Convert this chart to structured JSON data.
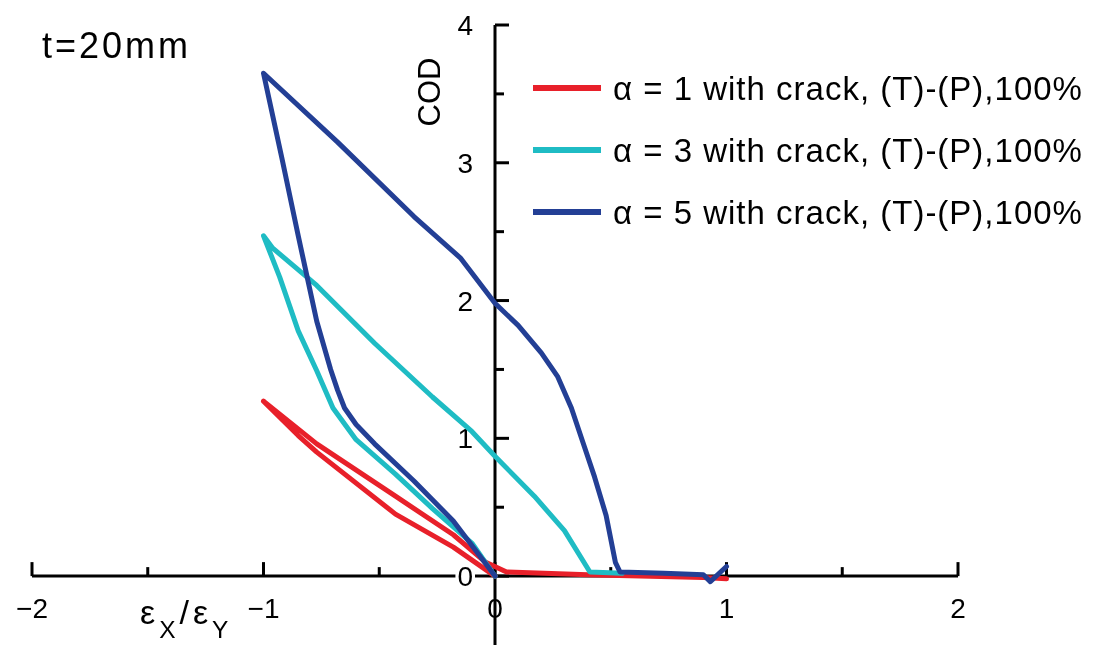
{
  "chart_data": {
    "type": "line",
    "xlabel": "ε$_{X}$/ε$_{Y}$",
    "ylabel": "COD",
    "annotations": [
      "t=20mm"
    ],
    "xlim": [
      -2,
      2
    ],
    "xticks": [
      {
        "value": -2,
        "label": "−2"
      },
      {
        "value": -1.5,
        "label": null
      },
      {
        "value": -1,
        "label": "−1"
      },
      {
        "value": -0.5,
        "label": null
      },
      0,
      {
        "value": 0.5,
        "label": null
      },
      1,
      {
        "value": 1.5,
        "label": null
      },
      2
    ],
    "ylim": [
      -0.5,
      4
    ],
    "yticks": [
      0,
      {
        "value": 0.5,
        "label": null
      },
      1,
      {
        "value": 1.5,
        "label": null
      },
      2,
      {
        "value": 2.5,
        "label": null
      },
      3,
      {
        "value": 3.5,
        "label": null
      },
      4
    ],
    "legend": "top right",
    "line_style": "solid",
    "series": [
      {
        "name": "α = 1 with crack, (T)-(P),100%",
        "color": "#e8202a",
        "x": [
          0,
          -0.18,
          -0.43,
          -0.77,
          -0.85,
          -1,
          -0.77,
          -0.43,
          -0.18,
          -0.04,
          0.05,
          0.4,
          0.9,
          1.0
        ],
        "values": [
          0,
          0.21,
          0.45,
          0.9,
          1.02,
          1.27,
          0.96,
          0.58,
          0.3,
          0.1,
          0.03,
          0.01,
          -0.01,
          -0.02
        ]
      },
      {
        "name": "α = 3 with crack, (T)-(P),100%",
        "color": "#1fbcc4",
        "x": [
          0,
          -0.1,
          -0.27,
          -0.43,
          -0.6,
          -0.7,
          -0.77,
          -0.85,
          -0.93,
          -1,
          -0.96,
          -0.77,
          -0.52,
          -0.27,
          -0.1,
          0,
          0.17,
          0.3,
          0.41,
          0.55
        ],
        "values": [
          0,
          0.24,
          0.49,
          0.74,
          0.99,
          1.22,
          1.49,
          1.78,
          2.17,
          2.47,
          2.38,
          2.11,
          1.69,
          1.3,
          1.05,
          0.87,
          0.58,
          0.33,
          0.03,
          0.02
        ]
      },
      {
        "name": "α = 5 with crack, (T)-(P),100%",
        "color": "#233f95",
        "x": [
          0,
          -0.18,
          -0.35,
          -0.52,
          -0.6,
          -0.65,
          -0.68,
          -0.71,
          -0.77,
          -0.85,
          -0.92,
          -1,
          -0.68,
          -0.35,
          -0.15,
          0,
          0.1,
          0.2,
          0.27,
          0.33,
          0.38,
          0.43,
          0.48,
          0.52,
          0.54,
          0.73,
          0.9,
          0.93,
          1.0
        ],
        "values": [
          0,
          0.4,
          0.69,
          0.96,
          1.1,
          1.22,
          1.35,
          1.5,
          1.85,
          2.47,
          3.03,
          3.65,
          3.15,
          2.61,
          2.31,
          1.98,
          1.82,
          1.62,
          1.45,
          1.22,
          0.97,
          0.72,
          0.44,
          0.1,
          0.03,
          0.02,
          0.01,
          -0.04,
          0.07
        ]
      }
    ]
  }
}
